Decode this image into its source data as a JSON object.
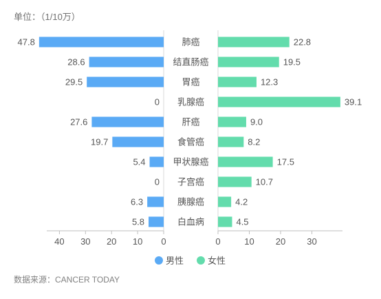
{
  "unit_label": "单位：（1/10万）",
  "source": "数据来源：CANCER TODAY",
  "chart_data": {
    "type": "bar",
    "orientation": "horizontal-butterfly",
    "categories": [
      "肺癌",
      "结直肠癌",
      "胃癌",
      "乳腺癌",
      "肝癌",
      "食管癌",
      "甲状腺癌",
      "子宫癌",
      "胰腺癌",
      "白血病"
    ],
    "series": [
      {
        "name": "男性",
        "values": [
          47.8,
          28.6,
          29.5,
          0,
          27.6,
          19.7,
          5.4,
          0,
          6.3,
          5.8
        ],
        "value_labels": [
          "47.8",
          "28.6",
          "29.5",
          "0",
          "27.6",
          "19.7",
          "5.4",
          "0",
          "6.3",
          "5.8"
        ],
        "color": "#5aaaf5"
      },
      {
        "name": "女性",
        "values": [
          22.8,
          19.5,
          12.3,
          39.1,
          9.0,
          8.2,
          17.5,
          10.7,
          4.2,
          4.5
        ],
        "value_labels": [
          "22.8",
          "19.5",
          "12.3",
          "39.1",
          "9.0",
          "8.2",
          "17.5",
          "10.7",
          "4.2",
          "4.5"
        ],
        "color": "#63dcac"
      }
    ],
    "left_axis": {
      "ticks": [
        40,
        30,
        20,
        10,
        0
      ],
      "tick_labels": [
        "40",
        "30",
        "20",
        "10",
        "0"
      ],
      "range": [
        0,
        48
      ]
    },
    "right_axis": {
      "ticks": [
        0,
        10,
        20,
        30
      ],
      "tick_labels": [
        "0",
        "10",
        "20",
        "30"
      ],
      "range": [
        0,
        39.5
      ]
    },
    "legend": {
      "position": "bottom"
    },
    "grid": false
  }
}
